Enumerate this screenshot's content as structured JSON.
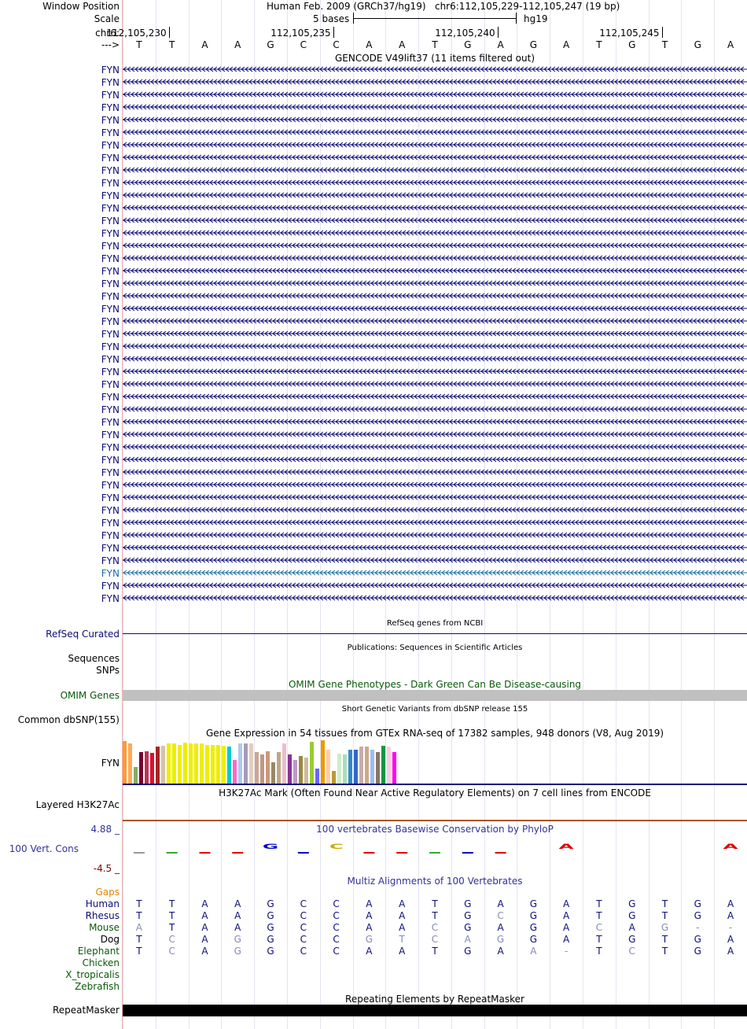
{
  "header": {
    "window_position_label": "Window Position",
    "assembly": "Human Feb. 2009 (GRCh37/hg19)",
    "position": "chr6:112,105,229-112,105,247 (19 bp)",
    "scale_label": "Scale",
    "scale_bases": "5 bases",
    "scale_db": "hg19",
    "chrom_label": "chr6:",
    "ticks": [
      "112,105,230",
      "112,105,235",
      "112,105,240",
      "112,105,245"
    ],
    "strand_label": "--->",
    "bases": [
      "T",
      "T",
      "A",
      "A",
      "G",
      "C",
      "C",
      "A",
      "A",
      "T",
      "G",
      "A",
      "G",
      "A",
      "T",
      "G",
      "T",
      "G",
      "A"
    ]
  },
  "gencode": {
    "title": "GENCODE V49lift37 (11 items filtered out)",
    "genes": [
      "FYN",
      "FYN",
      "FYN",
      "FYN",
      "FYN",
      "FYN",
      "FYN",
      "FYN",
      "FYN",
      "FYN",
      "FYN",
      "FYN",
      "FYN",
      "FYN",
      "FYN",
      "FYN",
      "FYN",
      "FYN",
      "FYN",
      "FYN",
      "FYN",
      "FYN",
      "FYN",
      "FYN",
      "FYN",
      "FYN",
      "FYN",
      "FYN",
      "FYN",
      "FYN",
      "FYN",
      "FYN",
      "FYN",
      "FYN",
      "FYN",
      "FYN",
      "FYN",
      "FYN",
      "FYN",
      "FYN",
      "FYN",
      "FYN",
      "FYN"
    ],
    "highlight_index": 40,
    "color": "#0c0c78",
    "highlight_color": "#1c6ea0"
  },
  "refseq": {
    "title": "RefSeq genes from NCBI",
    "label": "RefSeq Curated"
  },
  "publications": {
    "title": "Publications: Sequences in Scientific Articles",
    "label": "Sequences"
  },
  "snps": {
    "label": "SNPs"
  },
  "omim": {
    "title": "OMIM Gene Phenotypes - Dark Green Can Be Disease-causing",
    "label": "OMIM Genes",
    "color": "#0a5a0a"
  },
  "dbsnp": {
    "title": "Short Genetic Variants from dbSNP release 155",
    "label": "Common dbSNP(155)"
  },
  "gtex": {
    "title": "Gene Expression in 54 tissues from GTEx RNA-seq of 17382 samples, 948 donors (V8, Aug 2019)",
    "label": "FYN",
    "bars": [
      {
        "c": "#ff9933",
        "v": 0.98
      },
      {
        "c": "#ffaa55",
        "v": 0.92
      },
      {
        "c": "#88aa66",
        "v": 0.38
      },
      {
        "c": "#770033",
        "v": 0.72
      },
      {
        "c": "#bb3355",
        "v": 0.75
      },
      {
        "c": "#dd1133",
        "v": 0.71
      },
      {
        "c": "#aa2222",
        "v": 0.86
      },
      {
        "c": "#d9c2a8",
        "v": 0.88
      },
      {
        "c": "#eeee00",
        "v": 0.92
      },
      {
        "c": "#eeee00",
        "v": 0.92
      },
      {
        "c": "#eeee00",
        "v": 0.9
      },
      {
        "c": "#eeee00",
        "v": 0.95
      },
      {
        "c": "#eeee00",
        "v": 0.93
      },
      {
        "c": "#eeee00",
        "v": 0.92
      },
      {
        "c": "#eeee00",
        "v": 0.92
      },
      {
        "c": "#eeee00",
        "v": 0.9
      },
      {
        "c": "#eeee00",
        "v": 0.9
      },
      {
        "c": "#eeee00",
        "v": 0.9
      },
      {
        "c": "#eeee00",
        "v": 0.88
      },
      {
        "c": "#00cccc",
        "v": 0.86
      },
      {
        "c": "#ff66cc",
        "v": 0.55
      },
      {
        "c": "#aaccee",
        "v": 0.92
      },
      {
        "c": "#aa99bb",
        "v": 0.92
      },
      {
        "c": "#dfcfbf",
        "v": 0.92
      },
      {
        "c": "#caa791",
        "v": 0.73
      },
      {
        "c": "#bb9988",
        "v": 0.67
      },
      {
        "c": "#cc9977",
        "v": 0.75
      },
      {
        "c": "#998866",
        "v": 0.5
      },
      {
        "c": "#bbaa88",
        "v": 0.72
      },
      {
        "c": "#eebbcc",
        "v": 0.92
      },
      {
        "c": "#883399",
        "v": 0.68
      },
      {
        "c": "#bb99cc",
        "v": 0.55
      },
      {
        "c": "#998844",
        "v": 0.63
      },
      {
        "c": "#ccbb99",
        "v": 0.6
      },
      {
        "c": "#99cc33",
        "v": 0.96
      },
      {
        "c": "#6666ff",
        "v": 0.35
      },
      {
        "c": "#ee9900",
        "v": 1.0
      },
      {
        "c": "#ffccaa",
        "v": 0.78
      },
      {
        "c": "#bb9933",
        "v": 0.3
      },
      {
        "c": "#cceecc",
        "v": 0.7
      },
      {
        "c": "#aaddbb",
        "v": 0.68
      },
      {
        "c": "#3388cc",
        "v": 0.78
      },
      {
        "c": "#3366cc",
        "v": 0.78
      },
      {
        "c": "#ccaaaa",
        "v": 0.85
      },
      {
        "c": "#ccaa88",
        "v": 0.85
      },
      {
        "c": "#99bbff",
        "v": 0.78
      },
      {
        "c": "#887766",
        "v": 0.72
      },
      {
        "c": "#009944",
        "v": 0.88
      },
      {
        "c": "#ffccdd",
        "v": 0.86
      },
      {
        "c": "#ff00ee",
        "v": 0.72
      }
    ]
  },
  "h3k27ac": {
    "title": "H3K27Ac Mark (Often Found Near Active Regulatory Elements) on 7 cell lines from ENCODE",
    "label": "Layered H3K27Ac"
  },
  "phylop": {
    "title": "100 vertebrates Basewise Conservation by PhyloP",
    "label": "100 Vert. Cons",
    "max_label": "4.88 _",
    "min_label": "-4.5 _",
    "logo_letters": [
      {
        "i": 4,
        "ch": "G",
        "c": "#0000cc"
      },
      {
        "i": 6,
        "ch": "C",
        "c": "#ccaa00"
      },
      {
        "i": 13,
        "ch": "A",
        "c": "#dd0000"
      },
      {
        "i": 18,
        "ch": "A",
        "c": "#dd0000"
      }
    ]
  },
  "multiz": {
    "title": "Multiz Alignments of 100 Vertebrates",
    "gaps_label": "Gaps",
    "species": [
      {
        "name": "Human",
        "c": "#0c0c78",
        "seq": [
          "T",
          "T",
          "A",
          "A",
          "G",
          "C",
          "C",
          "A",
          "A",
          "T",
          "G",
          "A",
          "G",
          "A",
          "T",
          "G",
          "T",
          "G",
          "A"
        ],
        "dim": []
      },
      {
        "name": "Rhesus",
        "c": "#0c0c78",
        "seq": [
          "T",
          "T",
          "A",
          "A",
          "G",
          "C",
          "C",
          "A",
          "A",
          "T",
          "G",
          "C",
          "G",
          "A",
          "T",
          "G",
          "T",
          "G",
          "A"
        ],
        "dim": [
          11
        ]
      },
      {
        "name": "Mouse",
        "c": "#0a5a0a",
        "seq": [
          "A",
          "T",
          "A",
          "A",
          "G",
          "C",
          "C",
          "A",
          "A",
          "C",
          "G",
          "A",
          "G",
          "A",
          "C",
          "A",
          "G",
          "-",
          "-"
        ],
        "dim": [
          0,
          9,
          14,
          16,
          17,
          18
        ]
      },
      {
        "name": "Dog",
        "c": "#000000",
        "seq": [
          "T",
          "C",
          "A",
          "G",
          "G",
          "C",
          "C",
          "G",
          "T",
          "C",
          "A",
          "G",
          "G",
          "A",
          "T",
          "G",
          "T",
          "G",
          "A"
        ],
        "dim": [
          1,
          3,
          7,
          8,
          9,
          10,
          11
        ]
      },
      {
        "name": "Elephant",
        "c": "#0a5a0a",
        "seq": [
          "T",
          "C",
          "A",
          "G",
          "G",
          "C",
          "C",
          "A",
          "A",
          "T",
          "G",
          "A",
          "A",
          "-",
          "T",
          "C",
          "T",
          "G",
          "A"
        ],
        "dim": [
          1,
          3,
          12,
          13,
          15
        ]
      },
      {
        "name": "Chicken",
        "c": "#0a5a0a",
        "seq": [],
        "dim": []
      },
      {
        "name": "X_tropicalis",
        "c": "#0a5a0a",
        "seq": [],
        "dim": []
      },
      {
        "name": "Zebrafish",
        "c": "#0a5a0a",
        "seq": [],
        "dim": []
      }
    ]
  },
  "repeatmasker": {
    "title": "Repeating Elements by RepeatMasker",
    "label": "RepeatMasker"
  },
  "colors": {
    "gaps": "#dd8800",
    "phylop_label": "#333399",
    "phylop_min": "#880000",
    "dim_base": "#8888bb"
  }
}
